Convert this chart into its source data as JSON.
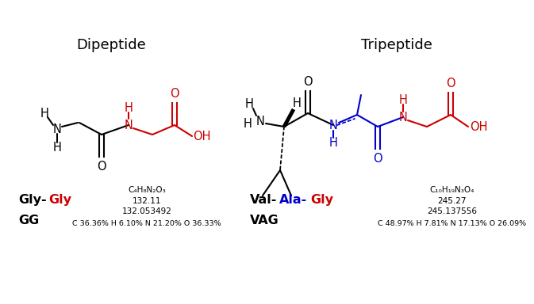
{
  "bg_color": "#ffffff",
  "title_dipeptide": "Dipeptide",
  "title_tripeptide": "Tripeptide",
  "black": "#000000",
  "red": "#cc0000",
  "blue": "#0000cc",
  "formula_gg_line1": "C₄H₈N₂O₃",
  "formula_gg_line2": "132.11",
  "formula_gg_line3": "132.053492",
  "formula_gg_line4": "C 36.36% H 6.10% N 21.20% O 36.33%",
  "formula_vag_line1": "C₁₀H₁₉N₃O₄",
  "formula_vag_line2": "245.27",
  "formula_vag_line3": "245.137556",
  "formula_vag_line4": "C 48.97% H 7.81% N 17.13% O 26.09%"
}
